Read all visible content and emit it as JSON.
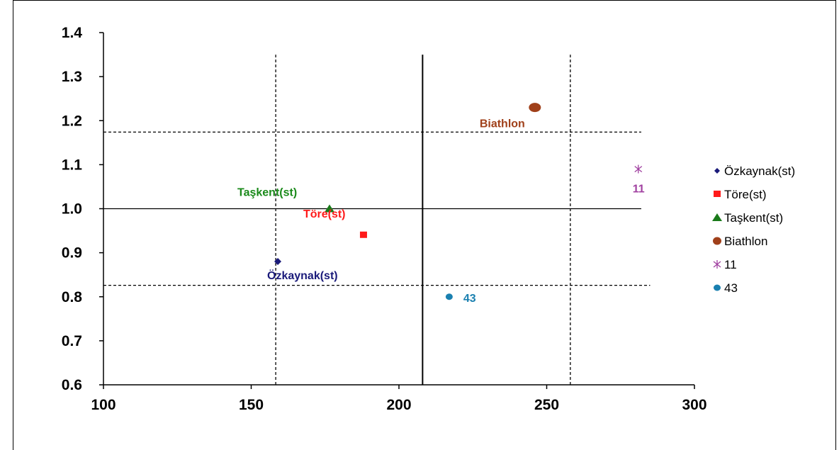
{
  "chart_data": {
    "type": "scatter",
    "xlim": [
      100,
      300
    ],
    "ylim": [
      0.6,
      1.4
    ],
    "x_ticks": [
      100,
      150,
      200,
      250,
      300
    ],
    "y_ticks": [
      0.6,
      0.7,
      0.8,
      0.9,
      1.0,
      1.1,
      1.2,
      1.3,
      1.4
    ],
    "x_tick_labels": [
      "100",
      "150",
      "200",
      "250",
      "300"
    ],
    "y_tick_labels": [
      "0.6",
      "0.7",
      "0.8",
      "0.9",
      "1.0",
      "1.1",
      "1.2",
      "1.3",
      "1.4"
    ],
    "title": "",
    "xlabel": "",
    "ylabel": "",
    "grid": false,
    "legend_position": "right",
    "series": [
      {
        "name": "Özkaynak(st)",
        "x": 159,
        "y": 0.88,
        "marker": "diamond",
        "color": "#1a1a7a",
        "label": "Özkaynak(st)",
        "label_color": "#1a1a7a"
      },
      {
        "name": "Töre(st)",
        "x": 188,
        "y": 0.94,
        "marker": "square",
        "color": "#ff1a1a",
        "label": "Töre(st)",
        "label_color": "#ff1a1a"
      },
      {
        "name": "Taşkent(st)",
        "x": 176.5,
        "y": 1.0,
        "marker": "triangle",
        "color": "#1a7a1a",
        "label": "Taşkent(st)",
        "label_color": "#1a8a1a"
      },
      {
        "name": "Biathlon",
        "x": 246,
        "y": 1.23,
        "marker": "circle-large",
        "color": "#a0401a",
        "label": "Biathlon",
        "label_color": "#a0401a"
      },
      {
        "name": "11",
        "x": 281,
        "y": 1.09,
        "marker": "asterisk",
        "color": "#a040a0",
        "label": "11",
        "label_color": "#a040a0"
      },
      {
        "name": "43",
        "x": 217,
        "y": 0.8,
        "marker": "circle-small",
        "color": "#1a80b0",
        "label": "43",
        "label_color": "#1a80b0"
      }
    ],
    "reference_lines": [
      {
        "orientation": "horizontal",
        "y": 1.0,
        "x_from": 100,
        "x_to": 282,
        "style": "solid"
      },
      {
        "orientation": "horizontal",
        "y": 1.174,
        "x_from": 100,
        "x_to": 282,
        "style": "dashed"
      },
      {
        "orientation": "horizontal",
        "y": 0.826,
        "x_from": 100,
        "x_to": 285,
        "style": "dashed"
      },
      {
        "orientation": "vertical",
        "x": 208,
        "y_from": 0.6,
        "y_to": 1.35,
        "style": "solid"
      },
      {
        "orientation": "vertical",
        "x": 158.3,
        "y_from": 0.6,
        "y_to": 1.35,
        "style": "dashed"
      },
      {
        "orientation": "vertical",
        "x": 258,
        "y_from": 0.6,
        "y_to": 1.35,
        "style": "dashed"
      }
    ]
  }
}
